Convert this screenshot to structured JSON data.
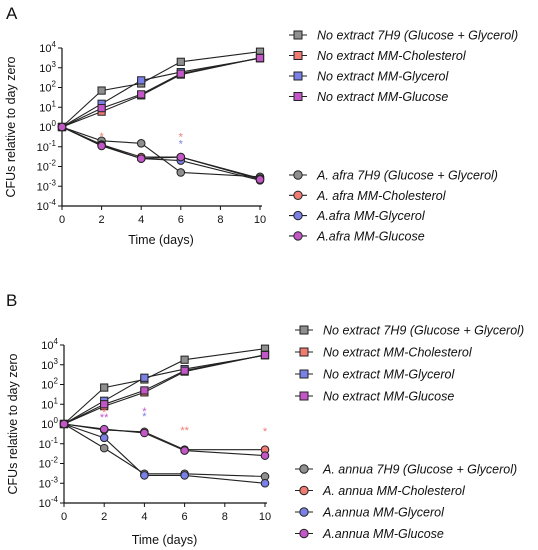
{
  "chart_data": [
    {
      "type": "line",
      "panel_label": "A",
      "xlabel": "Time (days)",
      "ylabel": "CFUs relative to day zero",
      "xlim": [
        0,
        10
      ],
      "ylim": [
        0.0001,
        10000
      ],
      "yscale": "log",
      "x_ticks": [
        "0",
        "2",
        "4",
        "6",
        "8",
        "10"
      ],
      "y_ticks": [
        {
          "base": "10",
          "exp": "4"
        },
        {
          "base": "10",
          "exp": "3"
        },
        {
          "base": "10",
          "exp": "2"
        },
        {
          "base": "10",
          "exp": "1"
        },
        {
          "base": "10",
          "exp": "0"
        },
        {
          "base": "10",
          "exp": "-1"
        },
        {
          "base": "10",
          "exp": "-2"
        },
        {
          "base": "10",
          "exp": "-3"
        },
        {
          "base": "10",
          "exp": "-4"
        }
      ],
      "legend_placement": "right",
      "x": [
        0,
        2,
        4,
        6,
        10
      ],
      "series": [
        {
          "name": "No extract 7H9 (Glucose + Glycerol)",
          "marker": "square",
          "color": "#8f8f8f",
          "values": [
            1,
            70,
            160,
            2000,
            6500
          ]
        },
        {
          "name": "No extract MM-Cholesterol",
          "marker": "square",
          "color": "#f07b73",
          "values": [
            1,
            6,
            40,
            450,
            3200
          ]
        },
        {
          "name": "No extract MM-Glycerol",
          "marker": "square",
          "color": "#7b80e6",
          "values": [
            1,
            15,
            230,
            600,
            3000
          ]
        },
        {
          "name": "No extract MM-Glucose",
          "marker": "square",
          "color": "#c357c7",
          "values": [
            1,
            9,
            45,
            500,
            3100
          ]
        },
        {
          "name": "A. afra 7H9 (Glucose + Glycerol)",
          "marker": "circle",
          "color": "#8f8f8f",
          "values": [
            1,
            0.2,
            0.15,
            0.005,
            0.003
          ]
        },
        {
          "name": "A. afra MM-Cholesterol",
          "marker": "circle",
          "color": "#f07b73",
          "values": [
            1,
            0.13,
            0.03,
            0.03,
            0.0025
          ]
        },
        {
          "name": "A.afra MM-Glycerol",
          "marker": "circle",
          "color": "#7b80e6",
          "values": [
            1,
            0.12,
            0.025,
            0.02,
            0.002
          ]
        },
        {
          "name": "A.afra MM-Glucose",
          "marker": "circle",
          "color": "#c357c7",
          "values": [
            1,
            0.11,
            0.025,
            0.03,
            0.0022
          ]
        }
      ],
      "annotations": [
        {
          "text": "*",
          "x": 2,
          "y": 0.35,
          "color": "#f07b73"
        },
        {
          "text": "*",
          "x": 6,
          "y": 0.33,
          "color": "#f07b73"
        },
        {
          "text": "*",
          "x": 6,
          "y": 0.15,
          "color": "#7b80e6"
        }
      ]
    },
    {
      "type": "line",
      "panel_label": "B",
      "xlabel": "Time (days)",
      "ylabel": "CFUs relative to day zero",
      "xlim": [
        0,
        10
      ],
      "ylim": [
        0.0001,
        10000
      ],
      "yscale": "log",
      "x_ticks": [
        "0",
        "2",
        "4",
        "6",
        "8",
        "10"
      ],
      "y_ticks": [
        {
          "base": "10",
          "exp": "4"
        },
        {
          "base": "10",
          "exp": "3"
        },
        {
          "base": "10",
          "exp": "2"
        },
        {
          "base": "10",
          "exp": "1"
        },
        {
          "base": "10",
          "exp": "0"
        },
        {
          "base": "10",
          "exp": "-1"
        },
        {
          "base": "10",
          "exp": "-2"
        },
        {
          "base": "10",
          "exp": "-3"
        },
        {
          "base": "10",
          "exp": "-4"
        }
      ],
      "legend_placement": "right",
      "x": [
        0,
        2,
        4,
        6,
        10
      ],
      "series": [
        {
          "name": "No extract 7H9 (Glucose + Glycerol)",
          "marker": "square",
          "color": "#8f8f8f",
          "values": [
            1,
            70,
            180,
            1800,
            6500
          ]
        },
        {
          "name": "No extract MM-Cholesterol",
          "marker": "square",
          "color": "#f07b73",
          "values": [
            1,
            8,
            40,
            450,
            3200
          ]
        },
        {
          "name": "No extract MM-Glycerol",
          "marker": "square",
          "color": "#7b80e6",
          "values": [
            1,
            15,
            220,
            600,
            3000
          ]
        },
        {
          "name": "No extract MM-Glucose",
          "marker": "square",
          "color": "#c357c7",
          "values": [
            1,
            10,
            50,
            500,
            3100
          ]
        },
        {
          "name": "A. annua 7H9 (Glucose + Glycerol)",
          "marker": "circle",
          "color": "#8f8f8f",
          "values": [
            1,
            0.06,
            0.003,
            0.003,
            0.0022
          ]
        },
        {
          "name": "A. annua MM-Cholesterol",
          "marker": "circle",
          "color": "#f07b73",
          "values": [
            1,
            0.5,
            0.4,
            0.05,
            0.05
          ]
        },
        {
          "name": "A.annua MM-Glycerol",
          "marker": "circle",
          "color": "#7b80e6",
          "values": [
            1,
            0.2,
            0.0025,
            0.0025,
            0.001
          ]
        },
        {
          "name": "A.annua MM-Glucose",
          "marker": "circle",
          "color": "#c357c7",
          "values": [
            1,
            0.55,
            0.35,
            0.045,
            0.025
          ]
        }
      ],
      "annotations": [
        {
          "text": "*",
          "x": 2,
          "y": 4,
          "color": "#f07b73"
        },
        {
          "text": "**",
          "x": 2,
          "y": 2.2,
          "color": "#c357c7"
        },
        {
          "text": "*",
          "x": 4,
          "y": 4.5,
          "color": "#c357c7"
        },
        {
          "text": "*",
          "x": 4,
          "y": 2.5,
          "color": "#7b80e6"
        },
        {
          "text": "**",
          "x": 6,
          "y": 0.5,
          "color": "#f07b73"
        },
        {
          "text": "*",
          "x": 10,
          "y": 0.45,
          "color": "#f07b73"
        }
      ]
    }
  ]
}
